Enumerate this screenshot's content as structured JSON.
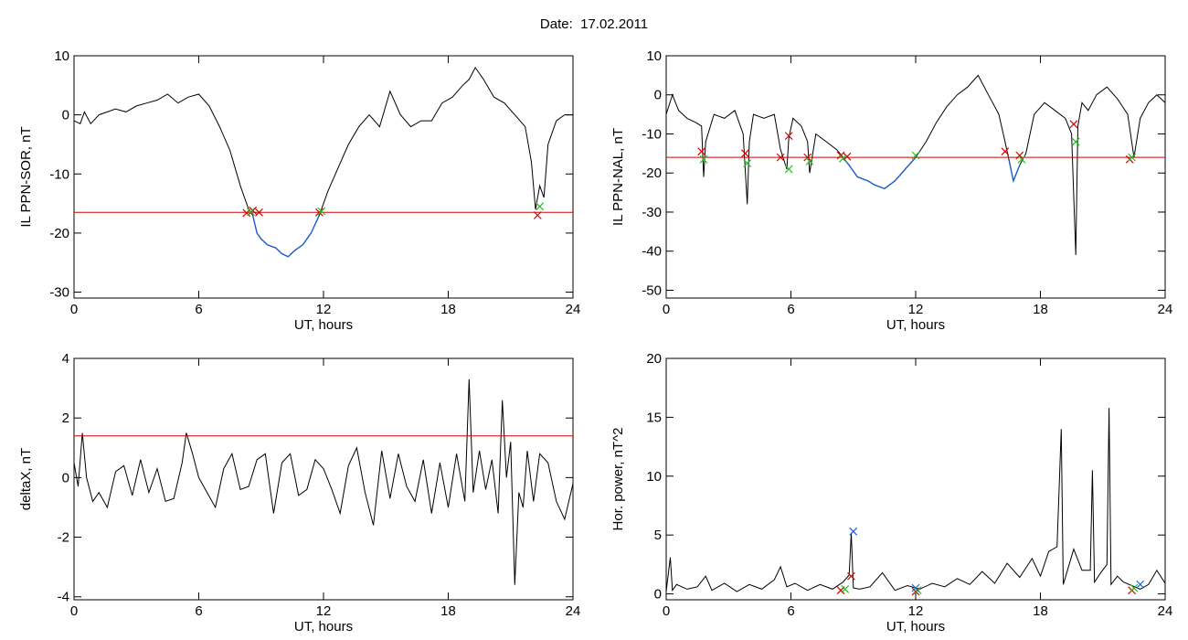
{
  "header": {
    "date_label": "Date:",
    "date_value": "17.02.2011"
  },
  "colors": {
    "trace": "#000000",
    "threshold": "#d00000",
    "below": "#1f5fd0",
    "marker_red": "#d00000",
    "marker_green": "#20c020",
    "marker_blue": "#1f5fd0"
  },
  "chart_data": [
    {
      "type": "line",
      "title": "",
      "xlabel": "UT, hours",
      "ylabel": "IL PPN-SOR, nT",
      "xlim": [
        0,
        24
      ],
      "ylim": [
        -31,
        10
      ],
      "xticks": [
        0,
        6,
        12,
        18,
        24
      ],
      "yticks": [
        10,
        0,
        -10,
        -20,
        -30
      ],
      "threshold": -16.5,
      "series": [
        {
          "x": [
            0,
            0.3,
            0.5,
            0.8,
            1.2,
            1.6,
            2,
            2.5,
            3,
            3.5,
            4,
            4.5,
            5,
            5.5,
            6,
            6.5,
            7,
            7.5,
            8,
            8.4,
            8.6,
            8.8,
            9,
            9.3,
            9.7,
            10,
            10.3,
            10.6,
            11,
            11.4,
            11.8,
            12.2,
            12.7,
            13.2,
            13.7,
            14.2,
            14.7,
            15.2,
            15.7,
            16.2,
            16.7,
            17.2,
            17.7,
            18.2,
            18.7,
            19,
            19.3,
            19.7,
            20.2,
            20.7,
            21.2,
            21.7,
            22,
            22.2,
            22.4,
            22.6,
            22.8,
            23.2,
            23.6,
            24
          ],
          "y": [
            -1,
            -1.5,
            0.5,
            -1.5,
            0,
            0.5,
            1,
            0.5,
            1.5,
            2,
            2.5,
            3.5,
            2,
            3,
            3.5,
            1.5,
            -2,
            -6,
            -12,
            -16,
            -17,
            -20,
            -21,
            -22,
            -22.5,
            -23.5,
            -24,
            -23,
            -22,
            -20,
            -17,
            -13,
            -9,
            -5,
            -2,
            0,
            -2,
            4,
            0,
            -2,
            -1,
            -1,
            2,
            3,
            5,
            6,
            8,
            6,
            3,
            2,
            0,
            -2,
            -8,
            -16,
            -12,
            -14,
            -5,
            -1,
            0,
            0
          ]
        }
      ],
      "markers": {
        "red": [
          [
            8.3,
            -16.6
          ],
          [
            8.6,
            -16.2
          ],
          [
            8.9,
            -16.5
          ],
          [
            11.8,
            -16.5
          ],
          [
            22.3,
            -17
          ]
        ],
        "green": [
          [
            8.5,
            -16.4
          ],
          [
            11.9,
            -16.3
          ],
          [
            22.4,
            -15.5
          ]
        ]
      }
    },
    {
      "type": "line",
      "title": "",
      "xlabel": "UT, hours",
      "ylabel": "IL PPN-NAL, nT",
      "xlim": [
        0,
        24
      ],
      "ylim": [
        -52,
        10
      ],
      "xticks": [
        0,
        6,
        12,
        18,
        24
      ],
      "yticks": [
        10,
        0,
        -10,
        -20,
        -30,
        -40,
        -50
      ],
      "threshold": -16,
      "series": [
        {
          "x": [
            0,
            0.3,
            0.6,
            1,
            1.4,
            1.7,
            1.8,
            1.9,
            2.3,
            2.8,
            3.3,
            3.7,
            3.9,
            4,
            4.2,
            4.7,
            5.2,
            5.5,
            5.8,
            5.9,
            6.1,
            6.5,
            6.8,
            6.9,
            7.2,
            7.7,
            8.2,
            8.5,
            8.8,
            9.2,
            9.7,
            10,
            10.5,
            11,
            11.5,
            12,
            12.5,
            13,
            13.5,
            14,
            14.5,
            15,
            15.5,
            16,
            16.3,
            16.5,
            16.7,
            17,
            17.3,
            17.7,
            18.2,
            18.7,
            19.2,
            19.5,
            19.7,
            19.8,
            20,
            20.3,
            20.7,
            21.2,
            21.7,
            22.2,
            22.5,
            22.8,
            23.2,
            23.6,
            24
          ],
          "y": [
            -5,
            0,
            -4,
            -6,
            -7,
            -8,
            -21,
            -12,
            -5,
            -6,
            -4,
            -10,
            -28,
            -12,
            -5,
            -6,
            -5,
            -14,
            -19,
            -11,
            -6,
            -8,
            -12,
            -20,
            -10,
            -12,
            -14,
            -16,
            -18,
            -21,
            -22,
            -23,
            -24,
            -22,
            -19,
            -16,
            -12,
            -7,
            -3,
            0,
            2,
            5,
            0,
            -5,
            -12,
            -17,
            -22,
            -18,
            -15,
            -5,
            -2,
            -4,
            -6,
            -10,
            -41,
            -8,
            -2,
            -4,
            0,
            2,
            -1,
            -5,
            -16,
            -6,
            -2,
            0,
            -2
          ]
        }
      ],
      "markers": {
        "red": [
          [
            1.7,
            -14.5
          ],
          [
            3.8,
            -15
          ],
          [
            5.5,
            -16
          ],
          [
            5.9,
            -10.5
          ],
          [
            6.8,
            -16
          ],
          [
            8.4,
            -15.5
          ],
          [
            8.7,
            -15.8
          ],
          [
            16.3,
            -14.5
          ],
          [
            17,
            -15.5
          ],
          [
            19.6,
            -7.5
          ],
          [
            22.3,
            -16.5
          ]
        ],
        "green": [
          [
            1.8,
            -16.5
          ],
          [
            3.9,
            -17.5
          ],
          [
            5.9,
            -19
          ],
          [
            6.9,
            -17
          ],
          [
            8.5,
            -16.3
          ],
          [
            12,
            -15.5
          ],
          [
            17.1,
            -16.5
          ],
          [
            19.7,
            -12
          ],
          [
            22.4,
            -16
          ]
        ]
      }
    },
    {
      "type": "line",
      "title": "",
      "xlabel": "UT, hours",
      "ylabel": "deltaX, nT",
      "xlim": [
        0,
        24
      ],
      "ylim": [
        -4.1,
        4
      ],
      "xticks": [
        0,
        6,
        12,
        18,
        24
      ],
      "yticks": [
        4,
        2,
        0,
        -2,
        -4
      ],
      "threshold": 1.4,
      "series": [
        {
          "x": [
            0,
            0.2,
            0.4,
            0.6,
            0.9,
            1.2,
            1.6,
            2,
            2.4,
            2.8,
            3.2,
            3.6,
            4,
            4.4,
            4.8,
            5.2,
            5.4,
            5.7,
            6,
            6.4,
            6.8,
            7.2,
            7.6,
            8,
            8.4,
            8.8,
            9.2,
            9.6,
            10,
            10.4,
            10.8,
            11.2,
            11.6,
            12,
            12.4,
            12.8,
            13.2,
            13.6,
            14,
            14.4,
            14.8,
            15.2,
            15.6,
            16,
            16.4,
            16.8,
            17.2,
            17.6,
            18,
            18.4,
            18.8,
            19,
            19.2,
            19.5,
            19.8,
            20.1,
            20.4,
            20.6,
            20.8,
            21,
            21.2,
            21.4,
            21.6,
            21.8,
            22.1,
            22.4,
            22.8,
            23.2,
            23.6,
            24
          ],
          "y": [
            0.5,
            -0.3,
            1.5,
            0,
            -0.8,
            -0.5,
            -1,
            0.2,
            0.4,
            -0.6,
            0.6,
            -0.5,
            0.3,
            -0.8,
            -0.7,
            0.5,
            1.5,
            0.8,
            0,
            -0.5,
            -1,
            0.3,
            0.8,
            -0.4,
            -0.3,
            0.6,
            0.8,
            -1.2,
            0.5,
            0.8,
            -0.6,
            -0.4,
            0.6,
            0.3,
            -0.4,
            -1.2,
            0.4,
            1,
            -0.5,
            -1.6,
            0.9,
            -0.7,
            0.8,
            -0.3,
            -0.8,
            0.6,
            -1.2,
            0.5,
            -1,
            0.8,
            -0.8,
            3.3,
            -0.5,
            0.9,
            -0.4,
            0.6,
            -1.2,
            2.6,
            0,
            1.2,
            -3.6,
            -0.5,
            -1,
            0.9,
            -0.8,
            0.8,
            0.5,
            -0.8,
            -1.4,
            -0.2
          ]
        }
      ]
    },
    {
      "type": "line",
      "title": "",
      "xlabel": "UT, hours",
      "ylabel": "Hor. power, nT^2",
      "xlim": [
        0,
        24
      ],
      "ylim": [
        -0.5,
        20
      ],
      "xticks": [
        0,
        6,
        12,
        18,
        24
      ],
      "yticks": [
        20,
        15,
        10,
        5,
        0
      ],
      "series": [
        {
          "x": [
            0,
            0.2,
            0.3,
            0.5,
            1,
            1.5,
            1.9,
            2.2,
            2.8,
            3.4,
            4,
            4.6,
            5.2,
            5.5,
            5.8,
            6.2,
            6.8,
            7.4,
            8,
            8.5,
            8.8,
            8.9,
            9,
            9.3,
            9.8,
            10.4,
            11,
            11.6,
            12.2,
            12.8,
            13.4,
            14,
            14.6,
            15.2,
            15.8,
            16.4,
            17,
            17.6,
            18,
            18.4,
            18.8,
            19,
            19.1,
            19.3,
            19.6,
            20,
            20.4,
            20.5,
            20.6,
            20.9,
            21.2,
            21.3,
            21.4,
            21.7,
            22,
            22.4,
            22.8,
            23.2,
            23.6,
            24
          ],
          "y": [
            0.2,
            3.1,
            0.3,
            0.8,
            0.4,
            0.6,
            1.5,
            0.3,
            0.9,
            0.2,
            0.8,
            0.4,
            1.2,
            2.3,
            0.6,
            0.9,
            0.3,
            0.8,
            0.4,
            1,
            1.6,
            5.2,
            0.5,
            0.4,
            0.6,
            1.8,
            0.3,
            0.7,
            0.4,
            0.9,
            0.6,
            1.3,
            0.8,
            1.9,
            0.9,
            2.6,
            1.4,
            3,
            1.5,
            3.6,
            4,
            14,
            0.8,
            2,
            3.8,
            2,
            2,
            10.5,
            1,
            1.8,
            2.5,
            15.8,
            0.8,
            1.5,
            1,
            0.7,
            0.4,
            0.8,
            2,
            0.9
          ]
        }
      ],
      "markers": {
        "red": [
          [
            8.4,
            0.3
          ],
          [
            8.9,
            1.5
          ],
          [
            12,
            0.2
          ],
          [
            22.4,
            0.3
          ]
        ],
        "green": [
          [
            8.6,
            0.4
          ],
          [
            12.1,
            0.3
          ],
          [
            22.5,
            0.5
          ]
        ],
        "blue": [
          [
            9,
            5.3
          ],
          [
            12,
            0.5
          ],
          [
            22.8,
            0.8
          ]
        ]
      }
    }
  ]
}
